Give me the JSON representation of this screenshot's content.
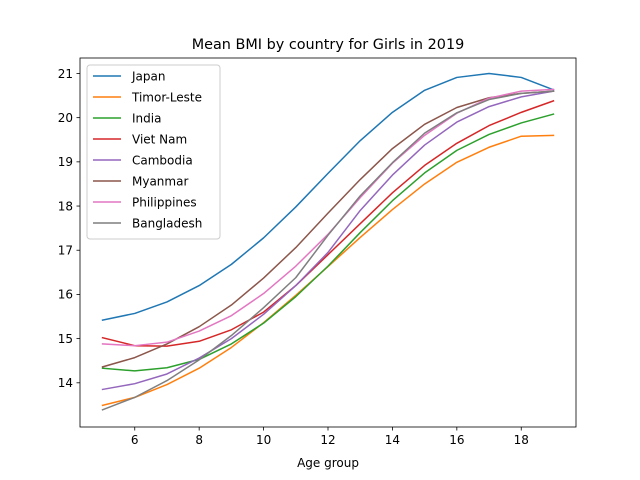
{
  "chart_data": {
    "type": "line",
    "title": "Mean BMI by country for Girls in 2019",
    "xlabel": "Age group",
    "ylabel": "",
    "xlim": [
      4.3,
      19.7
    ],
    "ylim": [
      13.0,
      21.35
    ],
    "xticks": [
      6,
      8,
      10,
      12,
      14,
      16,
      18
    ],
    "yticks": [
      14,
      15,
      16,
      17,
      18,
      19,
      20,
      21
    ],
    "grid": false,
    "legend_position": "top-left",
    "x": [
      5,
      6,
      7,
      8,
      9,
      10,
      11,
      12,
      13,
      14,
      15,
      16,
      17,
      18,
      19
    ],
    "series": [
      {
        "name": "Japan",
        "color": "#1f77b4",
        "values": [
          15.42,
          15.57,
          15.83,
          16.2,
          16.68,
          17.28,
          17.98,
          18.74,
          19.48,
          20.12,
          20.62,
          20.91,
          21.0,
          20.91,
          20.63
        ]
      },
      {
        "name": "Timor-Leste",
        "color": "#ff7f0e",
        "values": [
          13.49,
          13.67,
          13.96,
          14.33,
          14.8,
          15.36,
          15.98,
          16.63,
          17.29,
          17.92,
          18.5,
          18.99,
          19.33,
          19.58,
          19.6
        ]
      },
      {
        "name": "India",
        "color": "#2ca02c",
        "values": [
          14.33,
          14.27,
          14.34,
          14.53,
          14.88,
          15.35,
          15.95,
          16.64,
          17.4,
          18.12,
          18.75,
          19.26,
          19.62,
          19.88,
          20.08
        ]
      },
      {
        "name": "Viet Nam",
        "color": "#d62728",
        "values": [
          15.02,
          14.84,
          14.83,
          14.94,
          15.2,
          15.6,
          16.2,
          16.9,
          17.6,
          18.3,
          18.92,
          19.42,
          19.82,
          20.12,
          20.38
        ]
      },
      {
        "name": "Cambodia",
        "color": "#9467bd",
        "values": [
          13.85,
          13.98,
          14.2,
          14.56,
          15.0,
          15.55,
          16.2,
          16.95,
          17.9,
          18.7,
          19.38,
          19.9,
          20.25,
          20.47,
          20.6
        ]
      },
      {
        "name": "Myanmar",
        "color": "#8c564b",
        "values": [
          14.36,
          14.57,
          14.88,
          15.27,
          15.76,
          16.37,
          17.06,
          17.84,
          18.6,
          19.3,
          19.85,
          20.23,
          20.45,
          20.55,
          20.6
        ]
      },
      {
        "name": "Philippines",
        "color": "#e377c2",
        "values": [
          14.88,
          14.84,
          14.92,
          15.17,
          15.52,
          16.02,
          16.64,
          17.36,
          18.19,
          18.97,
          19.6,
          20.1,
          20.44,
          20.6,
          20.64
        ]
      },
      {
        "name": "Bangladesh",
        "color": "#7f7f7f",
        "values": [
          13.39,
          13.67,
          14.05,
          14.52,
          15.07,
          15.7,
          16.38,
          17.34,
          18.23,
          18.98,
          19.65,
          20.11,
          20.41,
          20.55,
          20.6
        ]
      }
    ]
  }
}
